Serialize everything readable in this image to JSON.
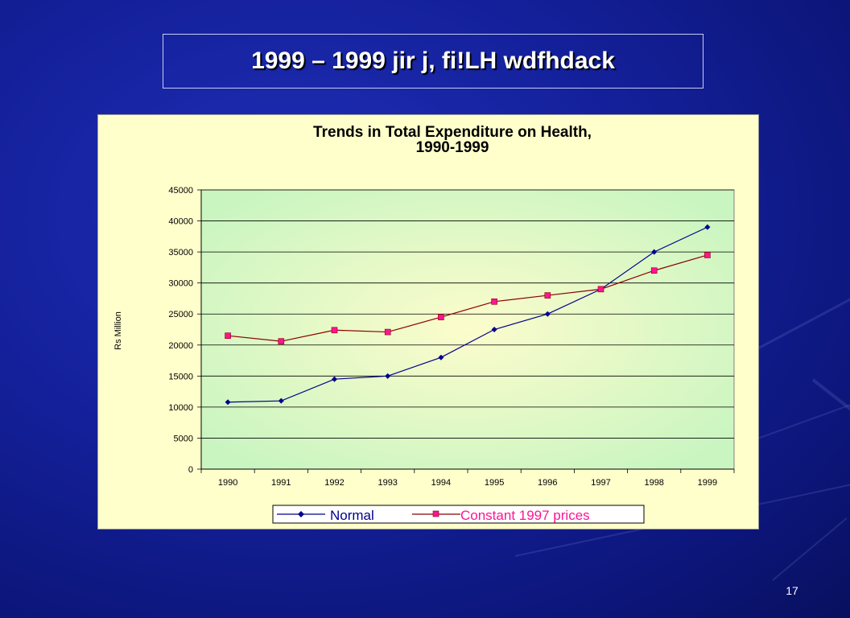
{
  "slide": {
    "title": "1999 – 1999 jir j, fi!LH wdfhdack",
    "page_number": "17"
  },
  "colors": {
    "background": "#14209a",
    "chart_panel": "#ffffcc",
    "plot_area_edge": "#c8f5c0",
    "plot_area_center": "#fcfccc",
    "normal_series": "#00008b",
    "constant_series_line": "#8b0000",
    "constant_series_marker": "#ff1493"
  },
  "chart_data": {
    "type": "line",
    "title": "Trends in Total Expenditure on Health,",
    "subtitle": "1990-1999",
    "xlabel": "",
    "ylabel": "Rs Million",
    "categories": [
      "1990",
      "1991",
      "1992",
      "1993",
      "1994",
      "1995",
      "1996",
      "1997",
      "1998",
      "1999"
    ],
    "ylim": [
      0,
      45000
    ],
    "yticks": [
      "0",
      "5000",
      "10000",
      "15000",
      "20000",
      "25000",
      "30000",
      "35000",
      "40000",
      "45000"
    ],
    "grid": true,
    "legend": "bottom",
    "series": [
      {
        "name": "Normal",
        "marker": "diamond",
        "values": [
          10800,
          11000,
          14500,
          15000,
          18000,
          22500,
          25000,
          29000,
          35000,
          39000
        ]
      },
      {
        "name": "Constant 1997 prices",
        "marker": "square",
        "values": [
          21500,
          20600,
          22400,
          22100,
          24500,
          27000,
          28000,
          29000,
          32000,
          34500
        ]
      }
    ]
  }
}
